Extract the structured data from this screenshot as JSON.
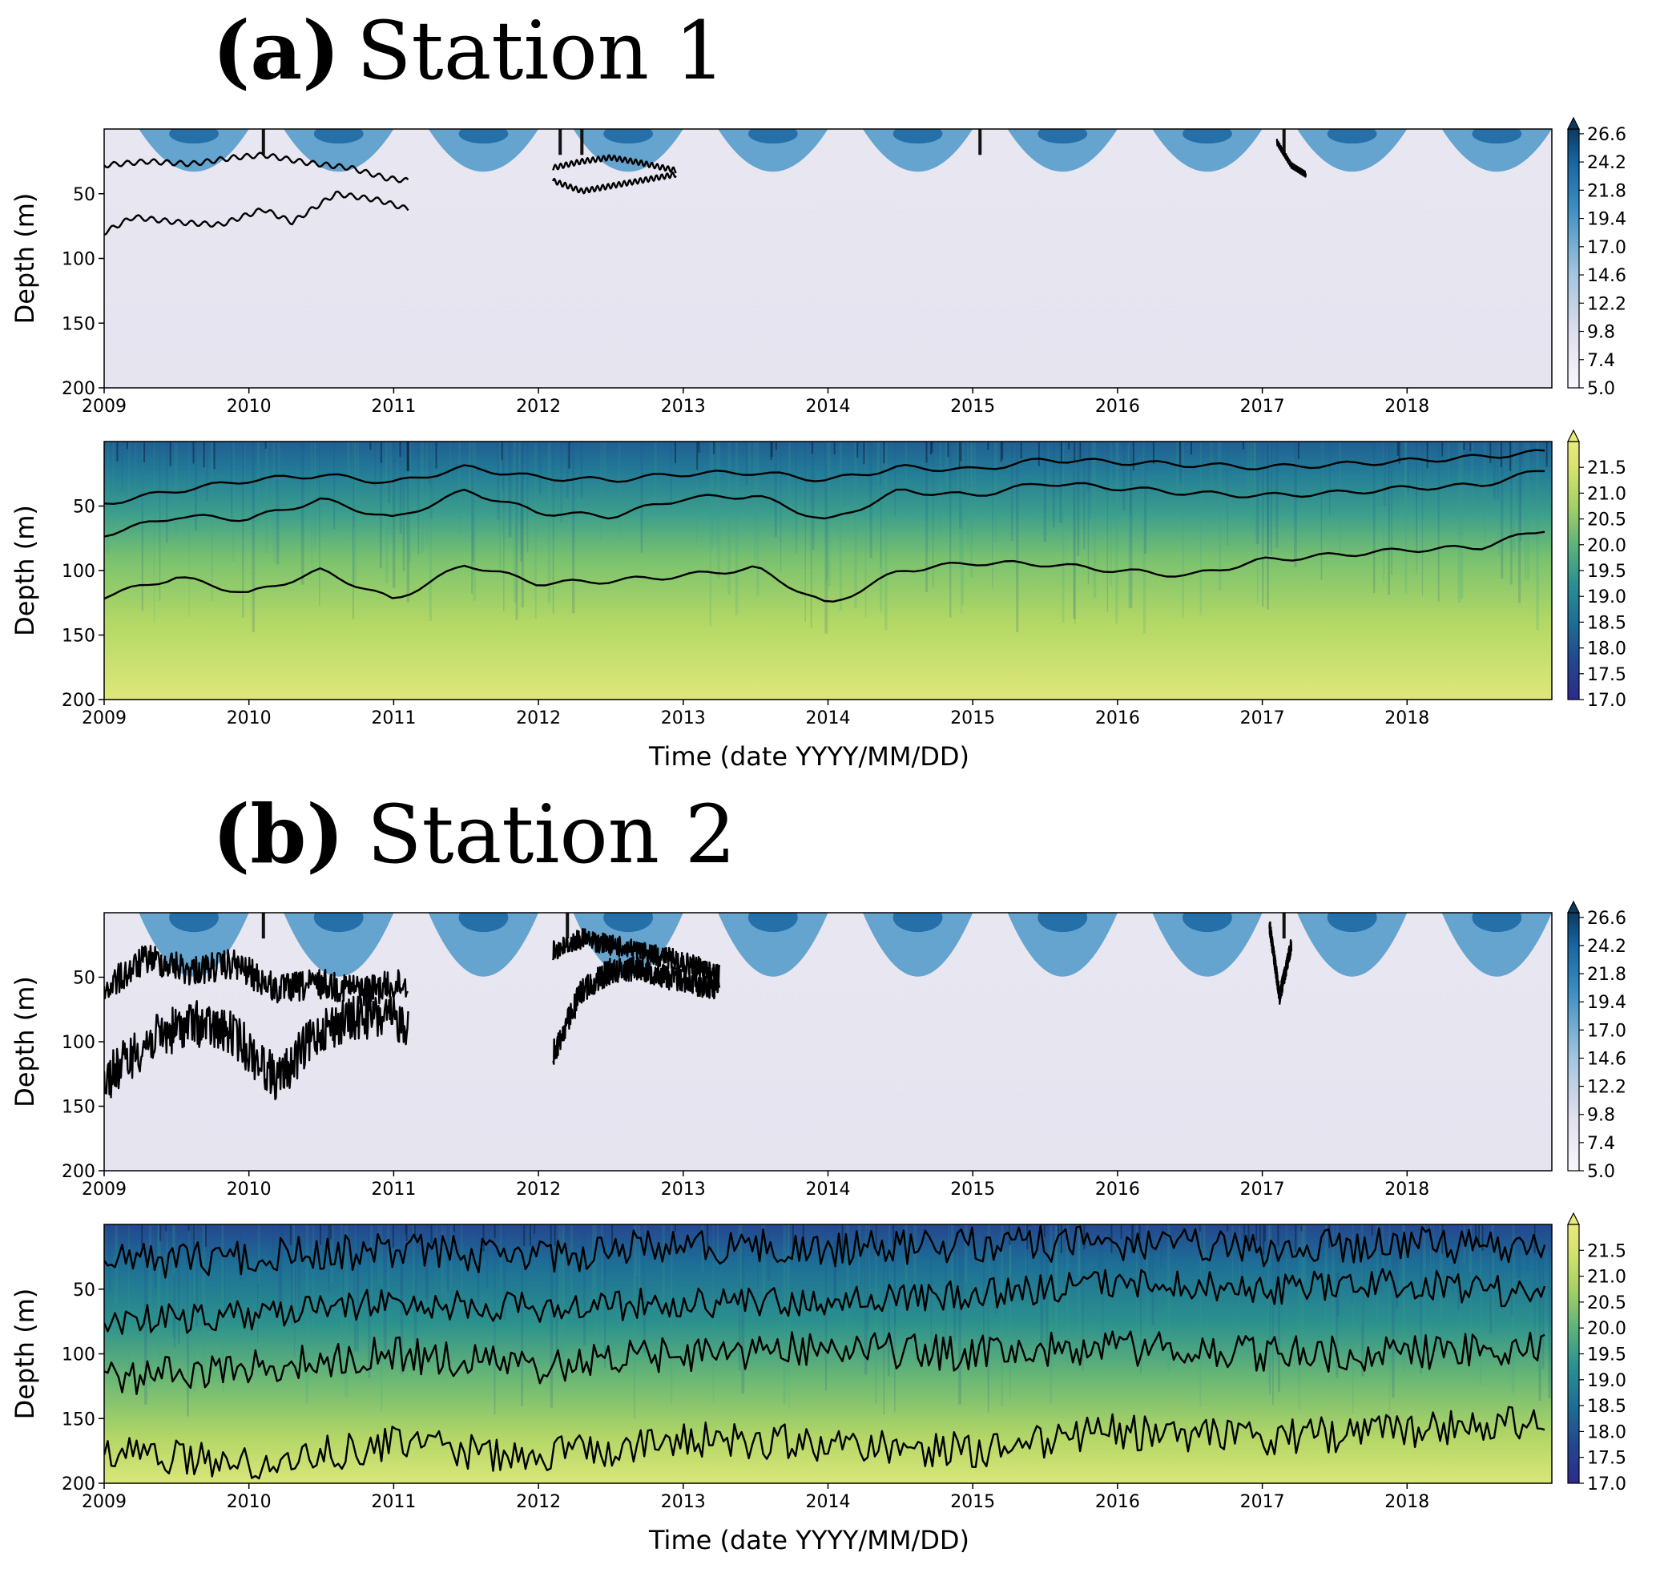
{
  "figure": {
    "panels": [
      {
        "label": "(a)",
        "title": "Station 1",
        "xlabel": "Time (date YYYY/MM/DD)"
      },
      {
        "label": "(b)",
        "title": "Station 2",
        "xlabel": "Time (date YYYY/MM/DD)"
      }
    ]
  },
  "chart_data": [
    {
      "type": "heatmap",
      "station": "Station 1",
      "ylabel": "Depth (m)",
      "x_ticks": [
        "2009",
        "2010",
        "2011",
        "2012",
        "2013",
        "2014",
        "2015",
        "2016",
        "2017",
        "2018"
      ],
      "xlim": [
        2009,
        2019
      ],
      "y_ticks": [
        50,
        100,
        150,
        200
      ],
      "ylim": [
        200,
        0
      ],
      "y_inverted": true,
      "colormap": "blues",
      "colorbar_ticks": [
        "26.6",
        "24.2",
        "21.8",
        "19.4",
        "17.0",
        "14.6",
        "12.2",
        "9.8",
        "7.4",
        "5.0"
      ],
      "colorbar_range": [
        5.0,
        27.0
      ],
      "colorbar_extend": "max",
      "field_description": "warm surface layer (blue) in summer, uniform light background below",
      "seasonal_peak_fraction": 0.62,
      "max_penetration_depth": 30,
      "surface_bursts": [
        2010.1,
        2012.15,
        2012.3,
        2015.05,
        2017.15
      ],
      "contours": [
        {
          "x": [
            2009.0,
            2009.3,
            2009.6,
            2009.9,
            2010.1,
            2010.4,
            2010.7,
            2010.95,
            2011.1
          ],
          "y": [
            28,
            25,
            27,
            22,
            20,
            26,
            30,
            38,
            40
          ]
        },
        {
          "x": [
            2009.0,
            2009.2,
            2009.5,
            2009.8,
            2010.1,
            2010.3,
            2010.6,
            2010.9,
            2011.1
          ],
          "y": [
            80,
            68,
            72,
            74,
            62,
            72,
            50,
            55,
            62
          ]
        },
        {
          "x": [
            2012.1,
            2012.3,
            2012.5,
            2012.7,
            2012.95
          ],
          "y": [
            30,
            25,
            22,
            26,
            32
          ]
        },
        {
          "x": [
            2012.1,
            2012.3,
            2012.5,
            2012.7,
            2012.95
          ],
          "y": [
            40,
            48,
            44,
            40,
            35
          ]
        },
        {
          "x": [
            2017.1,
            2017.2,
            2017.3
          ],
          "y": [
            10,
            28,
            35
          ]
        }
      ]
    },
    {
      "type": "heatmap",
      "station": "Station 1",
      "ylabel": "Depth (m)",
      "x_ticks": [
        "2009",
        "2010",
        "2011",
        "2012",
        "2013",
        "2014",
        "2015",
        "2016",
        "2017",
        "2018"
      ],
      "xlim": [
        2009,
        2019
      ],
      "y_ticks": [
        50,
        100,
        150,
        200
      ],
      "ylim": [
        200,
        0
      ],
      "y_inverted": true,
      "colormap": "yellow-green-blue",
      "colorbar_ticks": [
        "21.5",
        "21.0",
        "20.5",
        "20.0",
        "19.5",
        "19.0",
        "18.5",
        "18.0",
        "17.5",
        "17.0"
      ],
      "colorbar_range": [
        17.0,
        22.0
      ],
      "colorbar_extend": "max",
      "field_description": "dark blue near surface grading to yellow-green at depth",
      "contours": [
        {
          "x": [
            2009.0,
            2009.5,
            2010.0,
            2010.5,
            2011.0,
            2011.5,
            2012.0,
            2012.5,
            2013.0,
            2013.5,
            2014.0,
            2014.5,
            2015.0,
            2015.5,
            2016.0,
            2016.5,
            2017.0,
            2017.5,
            2018.0,
            2018.5,
            2018.95
          ],
          "y": [
            48,
            38,
            30,
            26,
            32,
            20,
            28,
            30,
            25,
            24,
            30,
            20,
            22,
            14,
            16,
            18,
            20,
            18,
            15,
            12,
            8
          ]
        },
        {
          "x": [
            2009.0,
            2009.5,
            2010.0,
            2010.5,
            2011.0,
            2011.5,
            2012.0,
            2012.5,
            2013.0,
            2013.5,
            2014.0,
            2014.5,
            2015.0,
            2015.5,
            2016.0,
            2016.5,
            2017.0,
            2017.5,
            2018.0,
            2018.5,
            2018.95
          ],
          "y": [
            72,
            58,
            60,
            45,
            60,
            38,
            55,
            58,
            44,
            42,
            62,
            38,
            42,
            32,
            36,
            40,
            42,
            40,
            36,
            34,
            22
          ]
        },
        {
          "x": [
            2009.0,
            2009.5,
            2010.0,
            2010.5,
            2011.0,
            2011.5,
            2012.0,
            2012.5,
            2013.0,
            2013.5,
            2014.0,
            2014.5,
            2015.0,
            2015.5,
            2016.0,
            2016.5,
            2017.0,
            2017.5,
            2018.0,
            2018.5,
            2018.95
          ],
          "y": [
            120,
            105,
            118,
            100,
            123,
            95,
            110,
            108,
            104,
            98,
            127,
            100,
            94,
            95,
            100,
            104,
            92,
            88,
            84,
            82,
            68
          ]
        }
      ]
    },
    {
      "type": "heatmap",
      "station": "Station 2",
      "ylabel": "Depth (m)",
      "x_ticks": [
        "2009",
        "2010",
        "2011",
        "2012",
        "2013",
        "2014",
        "2015",
        "2016",
        "2017",
        "2018"
      ],
      "xlim": [
        2009,
        2019
      ],
      "y_ticks": [
        50,
        100,
        150,
        200
      ],
      "ylim": [
        200,
        0
      ],
      "y_inverted": true,
      "colormap": "blues",
      "colorbar_ticks": [
        "26.6",
        "24.2",
        "21.8",
        "19.4",
        "17.0",
        "14.6",
        "12.2",
        "9.8",
        "7.4",
        "5.0"
      ],
      "colorbar_range": [
        5.0,
        27.0
      ],
      "colorbar_extend": "max",
      "field_description": "warm surface layer (blue) in summer, reaching deeper than Station 1",
      "seasonal_peak_fraction": 0.62,
      "max_penetration_depth": 45,
      "surface_bursts": [
        2010.1,
        2012.2,
        2017.15
      ],
      "contours": [
        {
          "x": [
            2009.0,
            2009.3,
            2009.6,
            2009.9,
            2010.2,
            2010.5,
            2010.8,
            2011.1
          ],
          "y": [
            60,
            35,
            45,
            40,
            60,
            55,
            60,
            55
          ],
          "noise": 12
        },
        {
          "x": [
            2009.0,
            2009.3,
            2009.6,
            2009.9,
            2010.2,
            2010.5,
            2010.8,
            2011.1
          ],
          "y": [
            130,
            100,
            85,
            95,
            130,
            90,
            80,
            85
          ],
          "noise": 18
        },
        {
          "x": [
            2012.1,
            2012.3,
            2012.5,
            2012.7,
            2012.9,
            2013.1,
            2013.25
          ],
          "y": [
            30,
            20,
            25,
            30,
            35,
            42,
            48
          ],
          "noise": 8
        },
        {
          "x": [
            2012.1,
            2012.3,
            2012.5,
            2012.7,
            2012.9,
            2013.1,
            2013.25
          ],
          "y": [
            110,
            60,
            45,
            42,
            50,
            55,
            58
          ],
          "noise": 10
        },
        {
          "x": [
            2017.05,
            2017.12,
            2017.2
          ],
          "y": [
            10,
            65,
            25
          ],
          "noise": 6
        }
      ]
    },
    {
      "type": "heatmap",
      "station": "Station 2",
      "ylabel": "Depth (m)",
      "x_ticks": [
        "2009",
        "2010",
        "2011",
        "2012",
        "2013",
        "2014",
        "2015",
        "2016",
        "2017",
        "2018"
      ],
      "xlim": [
        2009,
        2019
      ],
      "y_ticks": [
        50,
        100,
        150,
        200
      ],
      "ylim": [
        200,
        0
      ],
      "y_inverted": true,
      "colormap": "yellow-green-blue",
      "colorbar_ticks": [
        "21.5",
        "21.0",
        "20.5",
        "20.0",
        "19.5",
        "19.0",
        "18.5",
        "18.0",
        "17.5",
        "17.0"
      ],
      "colorbar_range": [
        17.0,
        22.0
      ],
      "colorbar_extend": "max",
      "field_description": "blue near surface grading to yellow-green at depth, highly variable",
      "contours": [
        {
          "x": [
            2009.0,
            2010.0,
            2011.0,
            2012.0,
            2013.0,
            2014.0,
            2015.0,
            2016.0,
            2017.0,
            2018.0,
            2018.95
          ],
          "y": [
            30,
            25,
            20,
            25,
            15,
            20,
            15,
            15,
            20,
            15,
            20
          ],
          "noise": 14
        },
        {
          "x": [
            2009.0,
            2010.0,
            2011.0,
            2012.0,
            2013.0,
            2014.0,
            2015.0,
            2016.0,
            2017.0,
            2018.0,
            2018.95
          ],
          "y": [
            75,
            70,
            60,
            65,
            60,
            60,
            55,
            45,
            50,
            45,
            55
          ],
          "noise": 12
        },
        {
          "x": [
            2009.0,
            2010.0,
            2011.0,
            2012.0,
            2013.0,
            2014.0,
            2015.0,
            2016.0,
            2017.0,
            2018.0,
            2018.95
          ],
          "y": [
            120,
            110,
            100,
            110,
            100,
            95,
            100,
            95,
            100,
            100,
            95
          ],
          "noise": 14
        },
        {
          "x": [
            2009.0,
            2010.0,
            2011.0,
            2012.0,
            2013.0,
            2014.0,
            2015.0,
            2016.0,
            2017.0,
            2018.0,
            2018.95
          ],
          "y": [
            175,
            185,
            170,
            180,
            165,
            170,
            175,
            160,
            165,
            160,
            150
          ],
          "noise": 14
        }
      ]
    }
  ]
}
